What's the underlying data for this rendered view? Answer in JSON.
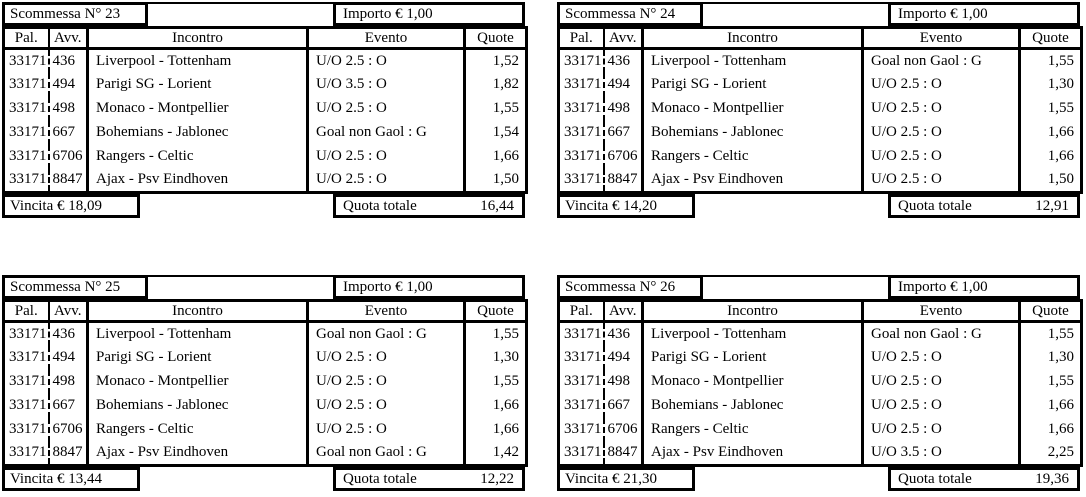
{
  "page": {
    "background": "#ffffff",
    "text_color": "#000000",
    "border_color": "#000000"
  },
  "columns": [
    "Pal.",
    "Avv.",
    "Incontro",
    "Evento",
    "Quote"
  ],
  "slips": [
    {
      "title": "Scommessa N° 23",
      "importo": "Importo € 1,00",
      "rows": [
        {
          "pal": "33171",
          "avv": "436",
          "incontro": "Liverpool - Tottenham",
          "evento": "U/O 2.5 : O",
          "quote": "1,52"
        },
        {
          "pal": "33171",
          "avv": "494",
          "incontro": "Parigi SG - Lorient",
          "evento": "U/O 3.5 : O",
          "quote": "1,82"
        },
        {
          "pal": "33171",
          "avv": "498",
          "incontro": "Monaco - Montpellier",
          "evento": "U/O 2.5 : O",
          "quote": "1,55"
        },
        {
          "pal": "33171",
          "avv": "667",
          "incontro": "Bohemians - Jablonec",
          "evento": "Goal non Gaol : G",
          "quote": "1,54"
        },
        {
          "pal": "33171",
          "avv": "6706",
          "incontro": "Rangers - Celtic",
          "evento": "U/O 2.5 : O",
          "quote": "1,66"
        },
        {
          "pal": "33171",
          "avv": "8847",
          "incontro": "Ajax - Psv Eindhoven",
          "evento": "U/O 2.5 : O",
          "quote": "1,50"
        }
      ],
      "vincita": "Vincita € 18,09",
      "quota_label": "Quota totale",
      "quota_value": "16,44"
    },
    {
      "title": "Scommessa N° 24",
      "importo": "Importo € 1,00",
      "rows": [
        {
          "pal": "33171",
          "avv": "436",
          "incontro": "Liverpool - Tottenham",
          "evento": "Goal non Gaol : G",
          "quote": "1,55"
        },
        {
          "pal": "33171",
          "avv": "494",
          "incontro": "Parigi SG - Lorient",
          "evento": "U/O 2.5 : O",
          "quote": "1,30"
        },
        {
          "pal": "33171",
          "avv": "498",
          "incontro": "Monaco - Montpellier",
          "evento": "U/O 2.5 : O",
          "quote": "1,55"
        },
        {
          "pal": "33171",
          "avv": "667",
          "incontro": "Bohemians - Jablonec",
          "evento": "U/O 2.5 : O",
          "quote": "1,66"
        },
        {
          "pal": "33171",
          "avv": "6706",
          "incontro": "Rangers - Celtic",
          "evento": "U/O 2.5 : O",
          "quote": "1,66"
        },
        {
          "pal": "33171",
          "avv": "8847",
          "incontro": "Ajax - Psv Eindhoven",
          "evento": "U/O 2.5 : O",
          "quote": "1,50"
        }
      ],
      "vincita": "Vincita € 14,20",
      "quota_label": "Quota totale",
      "quota_value": "12,91"
    },
    {
      "title": "Scommessa N° 25",
      "importo": "Importo € 1,00",
      "rows": [
        {
          "pal": "33171",
          "avv": "436",
          "incontro": "Liverpool - Tottenham",
          "evento": "Goal non Gaol : G",
          "quote": "1,55"
        },
        {
          "pal": "33171",
          "avv": "494",
          "incontro": "Parigi SG - Lorient",
          "evento": "U/O 2.5 : O",
          "quote": "1,30"
        },
        {
          "pal": "33171",
          "avv": "498",
          "incontro": "Monaco - Montpellier",
          "evento": "U/O 2.5 : O",
          "quote": "1,55"
        },
        {
          "pal": "33171",
          "avv": "667",
          "incontro": "Bohemians - Jablonec",
          "evento": "U/O 2.5 : O",
          "quote": "1,66"
        },
        {
          "pal": "33171",
          "avv": "6706",
          "incontro": "Rangers - Celtic",
          "evento": "U/O 2.5 : O",
          "quote": "1,66"
        },
        {
          "pal": "33171",
          "avv": "8847",
          "incontro": "Ajax - Psv Eindhoven",
          "evento": "Goal non Gaol : G",
          "quote": "1,42"
        }
      ],
      "vincita": "Vincita € 13,44",
      "quota_label": "Quota totale",
      "quota_value": "12,22"
    },
    {
      "title": "Scommessa N° 26",
      "importo": "Importo € 1,00",
      "rows": [
        {
          "pal": "33171",
          "avv": "436",
          "incontro": "Liverpool - Tottenham",
          "evento": "Goal non Gaol : G",
          "quote": "1,55"
        },
        {
          "pal": "33171",
          "avv": "494",
          "incontro": "Parigi SG - Lorient",
          "evento": "U/O 2.5 : O",
          "quote": "1,30"
        },
        {
          "pal": "33171",
          "avv": "498",
          "incontro": "Monaco - Montpellier",
          "evento": "U/O 2.5 : O",
          "quote": "1,55"
        },
        {
          "pal": "33171",
          "avv": "667",
          "incontro": "Bohemians - Jablonec",
          "evento": "U/O 2.5 : O",
          "quote": "1,66"
        },
        {
          "pal": "33171",
          "avv": "6706",
          "incontro": "Rangers - Celtic",
          "evento": "U/O 2.5 : O",
          "quote": "1,66"
        },
        {
          "pal": "33171",
          "avv": "8847",
          "incontro": "Ajax - Psv Eindhoven",
          "evento": "U/O 3.5 : O",
          "quote": "2,25"
        }
      ],
      "vincita": "Vincita € 21,30",
      "quota_label": "Quota totale",
      "quota_value": "19,36"
    }
  ]
}
